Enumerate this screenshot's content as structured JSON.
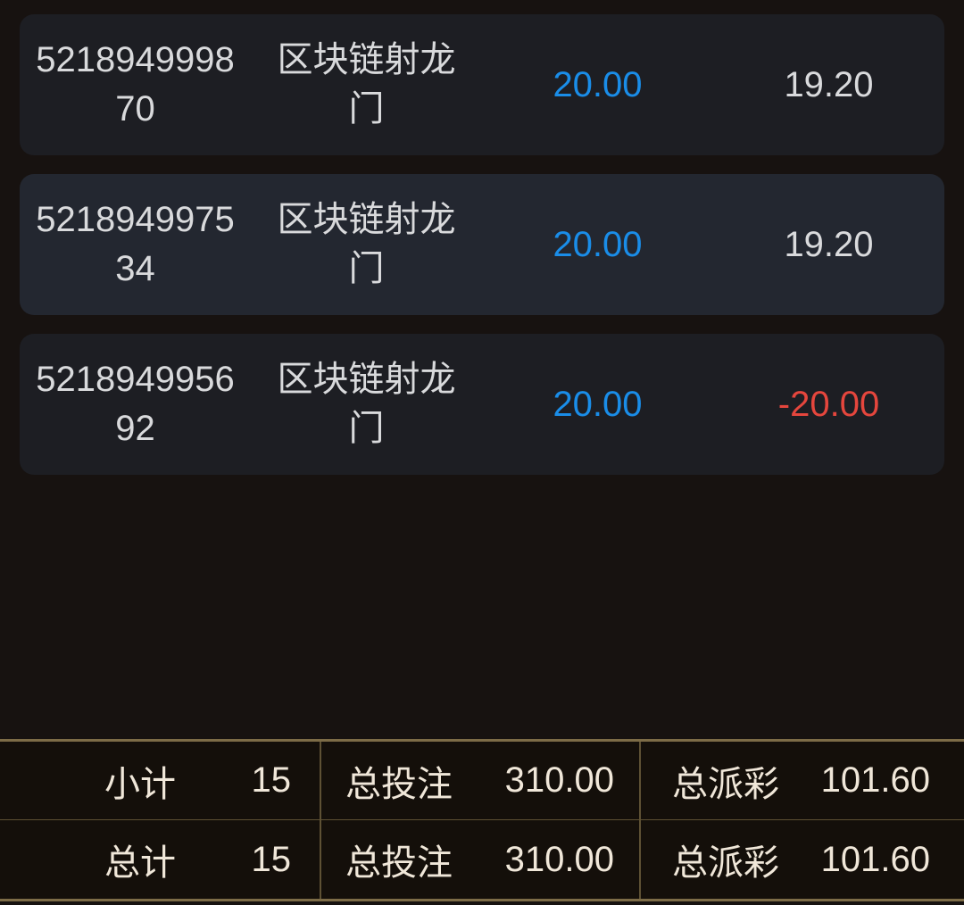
{
  "colors": {
    "bet_amount_blue": "#1a8de8",
    "loss_red": "#e5463d",
    "win_text": "#d9dadc",
    "summary_border_gold": "#7d6c47",
    "summary_text_cream": "#f0e7d9"
  },
  "bets": {
    "rows": [
      {
        "id": "521894999870",
        "game": "区块链射龙门",
        "amount": "20.00",
        "profit": "19.20",
        "profit_state": "win"
      },
      {
        "id": "521894997534",
        "game": "区块链射龙门",
        "amount": "20.00",
        "profit": "19.20",
        "profit_state": "win"
      },
      {
        "id": "521894995692",
        "game": "区块链射龙门",
        "amount": "20.00",
        "profit": "-20.00",
        "profit_state": "loss"
      }
    ]
  },
  "summary": {
    "rows": [
      {
        "label": "小计",
        "count": "15",
        "bet_label": "总投注",
        "bet_total": "310.00",
        "payout_label": "总派彩",
        "payout_total": "101.60"
      },
      {
        "label": "总计",
        "count": "15",
        "bet_label": "总投注",
        "bet_total": "310.00",
        "payout_label": "总派彩",
        "payout_total": "101.60"
      }
    ]
  }
}
